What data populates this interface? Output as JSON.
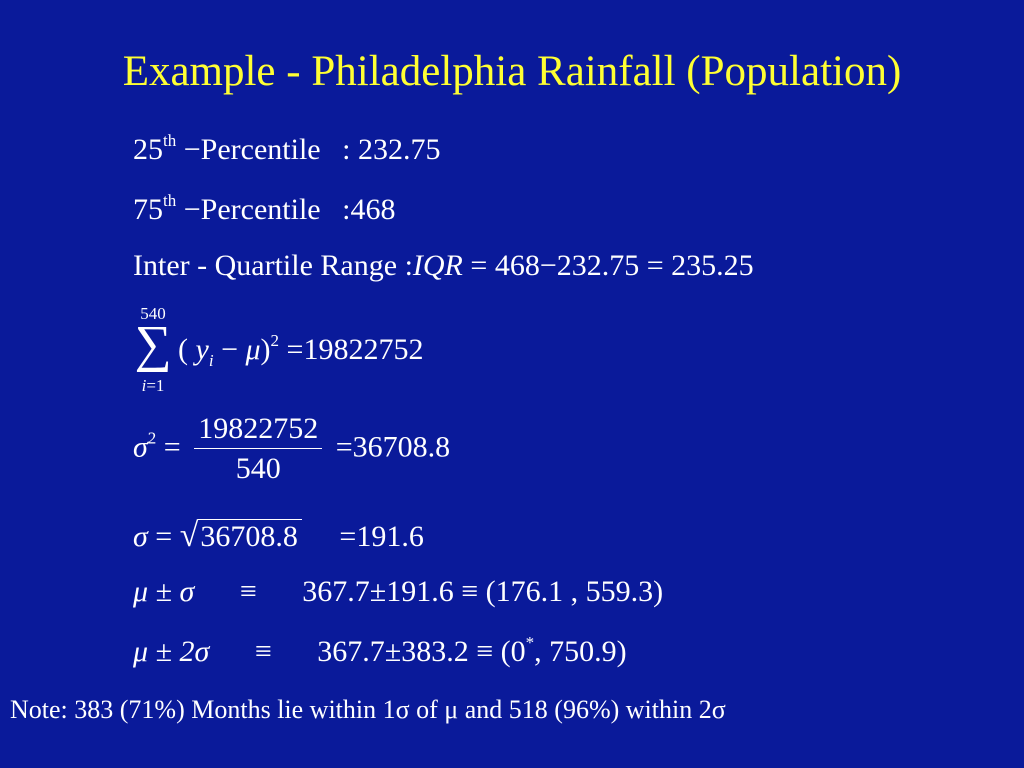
{
  "title": "Example - Philadelphia Rainfall (Population)",
  "p25": {
    "number": "25",
    "sup": "th",
    "dash": "−",
    "label": "Percentile",
    "colon": ":",
    "value": "232.75"
  },
  "p75": {
    "number": "75",
    "sup": "th",
    "dash": "−",
    "label": "Percentile",
    "colon": ":",
    "value": "468"
  },
  "iqr": {
    "label": "Inter - Quartile  Range",
    "colon": ":",
    "symbol": "IQR",
    "eq1": "=",
    "expr": "468−232.75",
    "eq2": "=",
    "result": "235.25"
  },
  "sum": {
    "upper": "540",
    "symbol": "∑",
    "lower_var": "i",
    "lower_eq": "=1",
    "open": "(",
    "y": "y",
    "y_sub": "i",
    "minus": "−",
    "mu": "μ",
    "close": ")",
    "exp": "2",
    "eq": "=",
    "result": "19822752"
  },
  "variance": {
    "sigma": "σ",
    "exp": "2",
    "eq1": "=",
    "numerator": "19822752",
    "denominator": "540",
    "eq2": "=",
    "result": "36708.8"
  },
  "sd": {
    "sigma": "σ",
    "eq1": "=",
    "radical": "√",
    "radicand": "36708.8",
    "eq2": "=",
    "result": "191.6"
  },
  "interval1": {
    "lhs": "μ ± σ",
    "equiv1": "≡",
    "expr": "367.7±191.6",
    "equiv2": "≡",
    "result": "(176.1 , 559.3)"
  },
  "interval2": {
    "lhs": "μ ± 2σ",
    "equiv1": "≡",
    "expr": "367.7±383.2",
    "equiv2": "≡",
    "result_open": "(0",
    "result_star": "*",
    "result_close": ", 750.9)"
  },
  "note": "Note: 383 (71%)  Months lie within 1σ of μ  and 518 (96%) within 2σ",
  "colors": {
    "background": "#0a1a9a",
    "title": "#ffff33",
    "text": "#ffffff"
  }
}
